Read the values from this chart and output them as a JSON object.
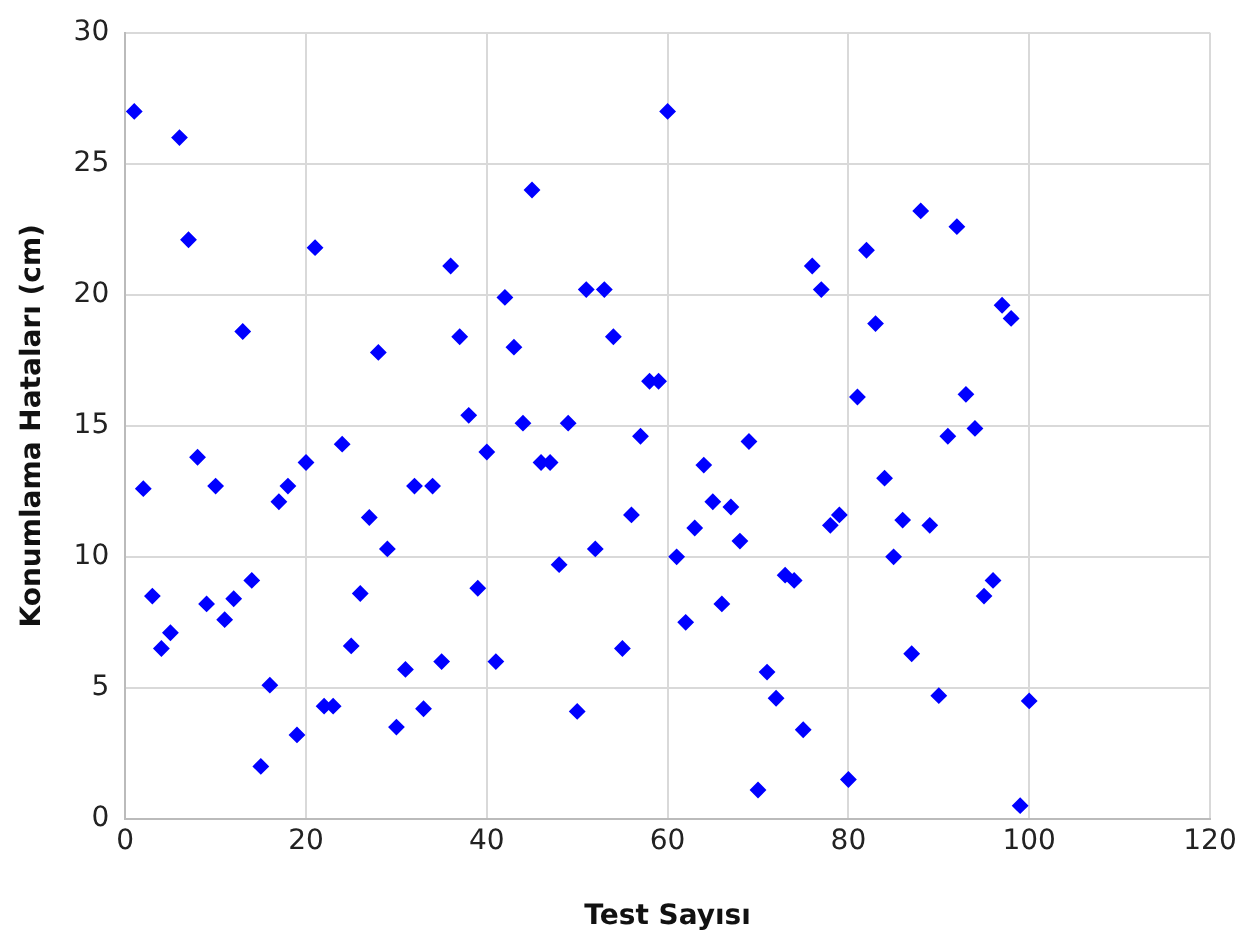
{
  "chart_data": {
    "type": "scatter",
    "xlabel": "Test Sayısı",
    "ylabel": "Konumlama Hataları (cm)",
    "x": [
      1,
      2,
      3,
      4,
      5,
      6,
      7,
      8,
      9,
      10,
      11,
      12,
      13,
      14,
      15,
      16,
      17,
      18,
      19,
      20,
      21,
      22,
      23,
      24,
      25,
      26,
      27,
      28,
      29,
      30,
      31,
      32,
      33,
      34,
      35,
      36,
      37,
      38,
      39,
      40,
      41,
      42,
      43,
      44,
      45,
      46,
      47,
      48,
      49,
      50,
      51,
      52,
      53,
      54,
      55,
      56,
      57,
      58,
      59,
      60,
      61,
      62,
      63,
      64,
      65,
      66,
      67,
      68,
      69,
      70,
      71,
      72,
      73,
      74,
      75,
      76,
      77,
      78,
      79,
      80,
      81,
      82,
      83,
      84,
      85,
      86,
      87,
      88,
      89,
      90,
      91,
      92,
      93,
      94,
      95,
      96,
      97,
      98,
      99,
      100
    ],
    "series": [
      {
        "color": "#0000ff",
        "values": [
          27.0,
          12.6,
          8.5,
          6.5,
          7.1,
          26.0,
          22.1,
          13.8,
          8.2,
          12.7,
          7.6,
          8.4,
          18.6,
          9.1,
          2.0,
          5.1,
          12.1,
          12.7,
          3.2,
          13.6,
          21.8,
          4.3,
          4.3,
          14.3,
          6.6,
          8.6,
          11.5,
          17.8,
          10.3,
          3.5,
          5.7,
          12.7,
          4.2,
          12.7,
          6.0,
          21.1,
          18.4,
          15.4,
          8.8,
          14.0,
          6.0,
          19.9,
          18.0,
          15.1,
          24.0,
          13.6,
          13.6,
          9.7,
          15.1,
          4.1,
          20.2,
          10.3,
          20.2,
          18.4,
          6.5,
          11.6,
          14.6,
          16.7,
          16.7,
          27.0,
          10.0,
          7.5,
          11.1,
          13.5,
          12.1,
          8.2,
          11.9,
          10.6,
          14.4,
          1.1,
          5.6,
          4.6,
          9.3,
          9.1,
          3.4,
          21.1,
          20.2,
          11.2,
          11.6,
          1.5,
          16.1,
          21.7,
          18.9,
          13.0,
          10.0,
          11.4,
          6.3,
          23.2,
          11.2,
          4.7,
          14.6,
          22.6,
          16.2,
          14.9,
          8.5,
          9.1,
          19.6,
          19.1,
          0.5,
          4.5
        ]
      }
    ],
    "xlim": [
      0,
      120
    ],
    "xticks": [
      0,
      20,
      40,
      60,
      80,
      100,
      120
    ],
    "ylim": [
      0,
      30
    ],
    "yticks": [
      0,
      5,
      10,
      15,
      20,
      25,
      30
    ],
    "grid": true,
    "marker": "diamond"
  }
}
